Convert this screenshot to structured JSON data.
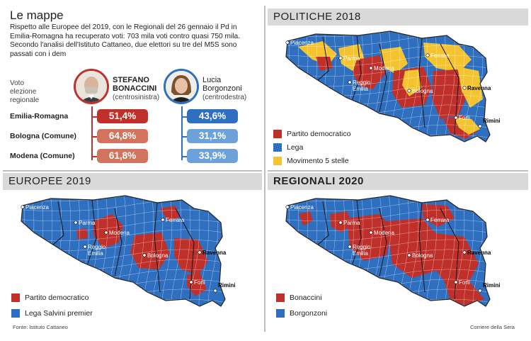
{
  "title": "Le mappe",
  "intro": "Rispetto alle Europee del 2019, con le Regionali del 26 gennaio il Pd in Emilia-Romagna ha recuperato voti: 703 mila voti contro quasi 750 mila. Secondo l'analisi dell'Istituto Cattaneo, due elettori su tre del M5S sono passati con i dem",
  "vote_label": "Voto\nelezione\nregionale",
  "candidates": [
    {
      "name_line1": "STEFANO",
      "name_line2": "BONACCINI",
      "party": "(centrosinistra)",
      "color": "#c0302b"
    },
    {
      "name_line1": "Lucia",
      "name_line2": "Borgonzoni",
      "party": "(centrodestra)",
      "color": "#2f6fc0"
    }
  ],
  "results": [
    {
      "area": "Emilia-Romagna",
      "bonaccini": "51,4%",
      "borgonzoni": "43,6%"
    },
    {
      "area": "Bologna (Comune)",
      "bonaccini": "64,8%",
      "borgonzoni": "31,1%"
    },
    {
      "area": "Modena (Comune)",
      "bonaccini": "61,8%",
      "borgonzoni": "33,9%"
    }
  ],
  "colors": {
    "red": "#c0302b",
    "red_light": "#d2735e",
    "blue": "#2f6fc0",
    "blue_light": "#6da2d8",
    "yellow": "#f4c430",
    "header_bg": "#d9d9d9"
  },
  "maps": {
    "politiche": {
      "title": "POLITICHE 2018",
      "cities": [
        "Piacenza",
        "Parma",
        "Modena",
        "Reggio Emilia",
        "Ferrara",
        "Bologna",
        "Ravenna",
        "Forlì",
        "Rimini"
      ],
      "legend": [
        {
          "label": "Partito democratico",
          "color": "#c0302b"
        },
        {
          "label": "Lega",
          "color": "#2f6fc0"
        },
        {
          "label": "Movimento 5 stelle",
          "color": "#f4c430"
        }
      ]
    },
    "europee": {
      "title": "EUROPEE 2019",
      "cities": [
        "Piacenza",
        "Parma",
        "Modena",
        "Reggio Emilia",
        "Ferrara",
        "Bologna",
        "Ravenna",
        "Forlì",
        "Rimini"
      ],
      "legend": [
        {
          "label": "Partito democratico",
          "color": "#c0302b"
        },
        {
          "label": "Lega Salvini premier",
          "color": "#2f6fc0"
        }
      ]
    },
    "regionali": {
      "title": "REGIONALI 2020",
      "cities": [
        "Piacenza",
        "Parma",
        "Modena",
        "Reggio Emilia",
        "Ferrara",
        "Bologna",
        "Ravenna",
        "Forlì",
        "Rimini"
      ],
      "legend": [
        {
          "label": "Bonaccini",
          "color": "#c0302b"
        },
        {
          "label": "Borgonzoni",
          "color": "#2f6fc0"
        }
      ]
    }
  },
  "source": "Fonte: Istituto Cattaneo",
  "credit": "Corriere della Sera"
}
